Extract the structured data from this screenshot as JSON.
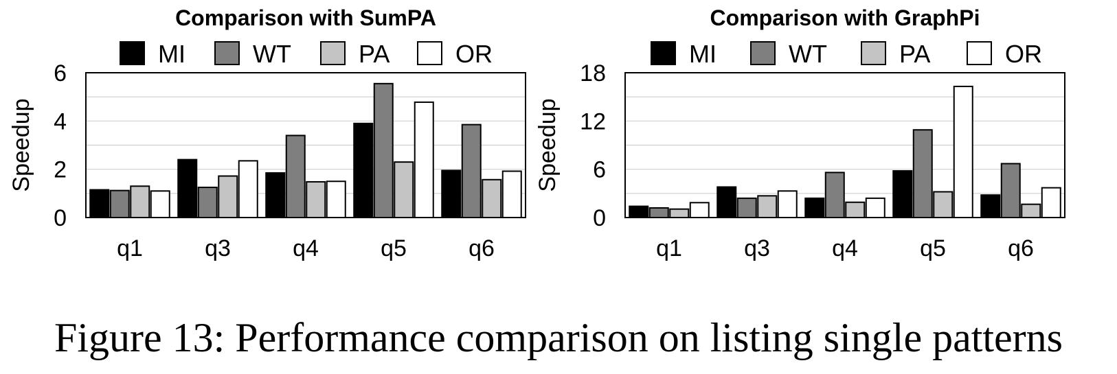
{
  "figure": {
    "caption": "Figure 13: Performance comparison on listing single patterns"
  },
  "chart_data": [
    {
      "type": "bar",
      "title": "Comparison with SumPA",
      "xlabel": "",
      "ylabel": "Speedup",
      "ylim": [
        0,
        6
      ],
      "yticks": [
        "0",
        "2",
        "4",
        "6"
      ],
      "grid": true,
      "legend_position": "top",
      "categories": [
        "q1",
        "q3",
        "q4",
        "q5",
        "q6"
      ],
      "series": [
        {
          "name": "MI",
          "color": "#000000",
          "values": [
            1.15,
            2.4,
            1.85,
            3.9,
            1.95
          ]
        },
        {
          "name": "WT",
          "color": "#7f7f7f",
          "values": [
            1.12,
            1.25,
            3.4,
            5.55,
            3.85
          ]
        },
        {
          "name": "PA",
          "color": "#c4c4c4",
          "values": [
            1.3,
            1.72,
            1.48,
            2.3,
            1.57
          ]
        },
        {
          "name": "OR",
          "color": "#ffffff",
          "values": [
            1.1,
            2.35,
            1.5,
            4.78,
            1.92
          ]
        }
      ]
    },
    {
      "type": "bar",
      "title": "Comparison with GraphPi",
      "xlabel": "",
      "ylabel": "Speedup",
      "ylim": [
        0,
        18
      ],
      "yticks": [
        "0",
        "6",
        "12",
        "18"
      ],
      "grid": true,
      "legend_position": "top",
      "categories": [
        "q1",
        "q3",
        "q4",
        "q5",
        "q6"
      ],
      "series": [
        {
          "name": "MI",
          "color": "#000000",
          "values": [
            1.4,
            3.8,
            2.4,
            5.8,
            2.8
          ]
        },
        {
          "name": "WT",
          "color": "#7f7f7f",
          "values": [
            1.2,
            2.4,
            5.6,
            10.9,
            6.7
          ]
        },
        {
          "name": "PA",
          "color": "#c4c4c4",
          "values": [
            1.05,
            2.7,
            1.9,
            3.2,
            1.65
          ]
        },
        {
          "name": "OR",
          "color": "#ffffff",
          "values": [
            1.85,
            3.3,
            2.4,
            16.3,
            3.7
          ]
        }
      ]
    }
  ]
}
